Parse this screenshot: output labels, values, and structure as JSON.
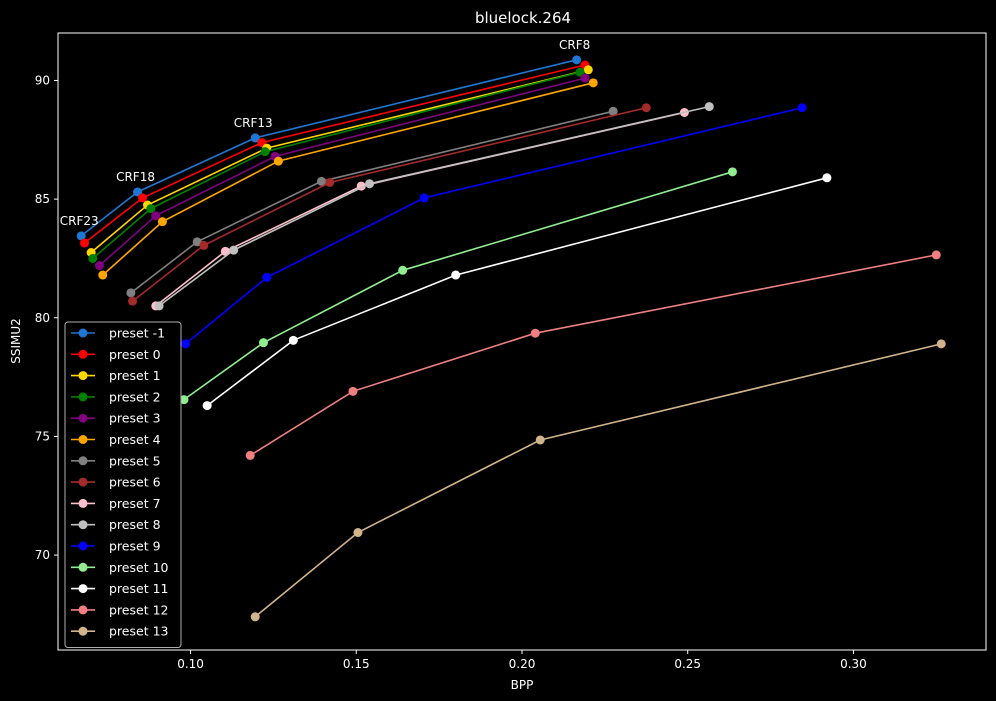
{
  "chart_data": {
    "type": "line",
    "title": "bluelock.264",
    "xlabel": "BPP",
    "ylabel": "SSIMU2",
    "xlim": [
      0.06,
      0.34
    ],
    "ylim": [
      66.0,
      92.0
    ],
    "xticks": [
      0.1,
      0.15,
      0.2,
      0.25,
      0.3
    ],
    "xtick_labels": [
      "0.10",
      "0.15",
      "0.20",
      "0.25",
      "0.30"
    ],
    "yticks": [
      70,
      75,
      80,
      85,
      90
    ],
    "ytick_labels": [
      "70",
      "75",
      "80",
      "85",
      "90"
    ],
    "legend": "lower-left",
    "grid": false,
    "background": "#000000",
    "annotations": [
      {
        "text": "CRF8",
        "x": 0.2165,
        "y": 90.87
      },
      {
        "text": "CRF13",
        "x": 0.1195,
        "y": 87.58
      },
      {
        "text": "CRF18",
        "x": 0.084,
        "y": 85.3
      },
      {
        "text": "CRF23",
        "x": 0.067,
        "y": 83.45
      }
    ],
    "series": [
      {
        "name": "preset -1",
        "color": "#1f77d4",
        "x": [
          0.067,
          0.084,
          0.1195,
          0.2165
        ],
        "y": [
          83.45,
          85.3,
          87.58,
          90.87
        ]
      },
      {
        "name": "preset 0",
        "color": "#ff0000",
        "x": [
          0.068,
          0.0855,
          0.1215,
          0.219
        ],
        "y": [
          83.15,
          85.05,
          87.38,
          90.65
        ]
      },
      {
        "name": "preset 1",
        "color": "#ffd700",
        "x": [
          0.07,
          0.087,
          0.123,
          0.22
        ],
        "y": [
          82.75,
          84.75,
          87.15,
          90.45
        ]
      },
      {
        "name": "preset 2",
        "color": "#008000",
        "x": [
          0.0705,
          0.088,
          0.1225,
          0.2175
        ],
        "y": [
          82.5,
          84.6,
          87.0,
          90.35
        ]
      },
      {
        "name": "preset 3",
        "color": "#800080",
        "x": [
          0.0725,
          0.0895,
          0.1255,
          0.219
        ],
        "y": [
          82.2,
          84.3,
          86.8,
          90.1
        ]
      },
      {
        "name": "preset 4",
        "color": "#ffa500",
        "x": [
          0.0735,
          0.0915,
          0.1265,
          0.2215
        ],
        "y": [
          81.8,
          84.05,
          86.6,
          89.9
        ]
      },
      {
        "name": "preset 5",
        "color": "#808080",
        "x": [
          0.082,
          0.102,
          0.1395,
          0.2275
        ],
        "y": [
          81.05,
          83.2,
          85.75,
          88.7
        ]
      },
      {
        "name": "preset 6",
        "color": "#a52a2a",
        "x": [
          0.0825,
          0.104,
          0.142,
          0.2375
        ],
        "y": [
          80.7,
          83.05,
          85.7,
          88.85
        ]
      },
      {
        "name": "preset 7",
        "color": "#ffc0cb",
        "x": [
          0.0895,
          0.1105,
          0.1515,
          0.249
        ],
        "y": [
          80.5,
          82.8,
          85.55,
          88.65
        ]
      },
      {
        "name": "preset 8",
        "color": "#c0c0c0",
        "x": [
          0.0905,
          0.113,
          0.154,
          0.2565
        ],
        "y": [
          80.5,
          82.85,
          85.65,
          88.9
        ]
      },
      {
        "name": "preset 9",
        "color": "#0000ff",
        "x": [
          0.0985,
          0.123,
          0.1705,
          0.2845
        ],
        "y": [
          78.9,
          81.7,
          85.05,
          88.85
        ]
      },
      {
        "name": "preset 10",
        "color": "#90ee90",
        "x": [
          0.098,
          0.122,
          0.164,
          0.2635
        ],
        "y": [
          76.55,
          78.95,
          82.0,
          86.15
        ]
      },
      {
        "name": "preset 11",
        "color": "#ffffff",
        "x": [
          0.105,
          0.131,
          0.18,
          0.292
        ],
        "y": [
          76.3,
          79.05,
          81.8,
          85.9
        ]
      },
      {
        "name": "preset 12",
        "color": "#f08080",
        "x": [
          0.118,
          0.149,
          0.204,
          0.325
        ],
        "y": [
          74.2,
          76.9,
          79.35,
          82.65
        ]
      },
      {
        "name": "preset 13",
        "color": "#d2b48c",
        "x": [
          0.1195,
          0.1505,
          0.2055,
          0.3265
        ],
        "y": [
          67.4,
          70.95,
          74.85,
          78.9
        ]
      }
    ]
  }
}
